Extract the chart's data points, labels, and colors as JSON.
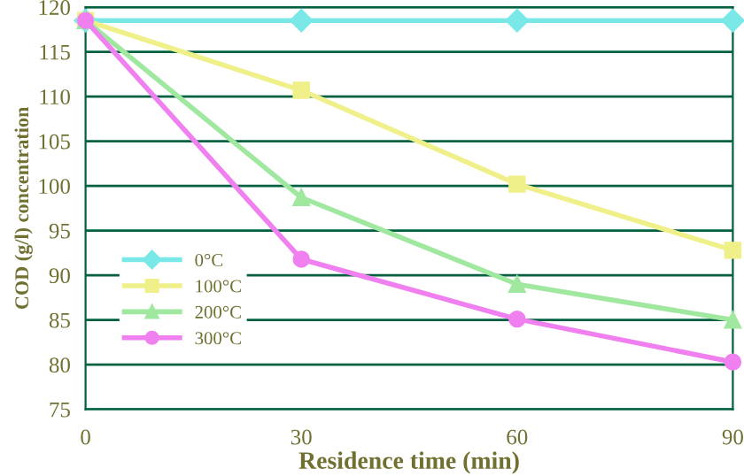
{
  "chart_data": {
    "type": "line",
    "xlabel": "Residence time (min)",
    "ylabel": "COD (g/l) concentration",
    "x": [
      0,
      30,
      60,
      90
    ],
    "series": [
      {
        "name": "0°C",
        "color": "#7be8e8",
        "marker": "diamond",
        "values": [
          118.5,
          118.5,
          118.5,
          118.5
        ]
      },
      {
        "name": "100°C",
        "color": "#f0f08a",
        "marker": "square",
        "values": [
          118.5,
          110.7,
          100.2,
          92.8
        ]
      },
      {
        "name": "200°C",
        "color": "#a0e8a0",
        "marker": "triangle",
        "values": [
          118.5,
          98.7,
          89.0,
          85.0
        ]
      },
      {
        "name": "300°C",
        "color": "#f080f0",
        "marker": "circle",
        "values": [
          118.5,
          91.8,
          85.1,
          80.3
        ]
      }
    ],
    "xlim": [
      0,
      90
    ],
    "xticks": [
      0,
      30,
      60,
      90
    ],
    "ylim": [
      75,
      120
    ],
    "yticks": [
      75,
      80,
      85,
      90,
      95,
      100,
      105,
      110,
      115,
      120
    ],
    "grid": "y",
    "legend": "left",
    "line_style": "solid"
  }
}
